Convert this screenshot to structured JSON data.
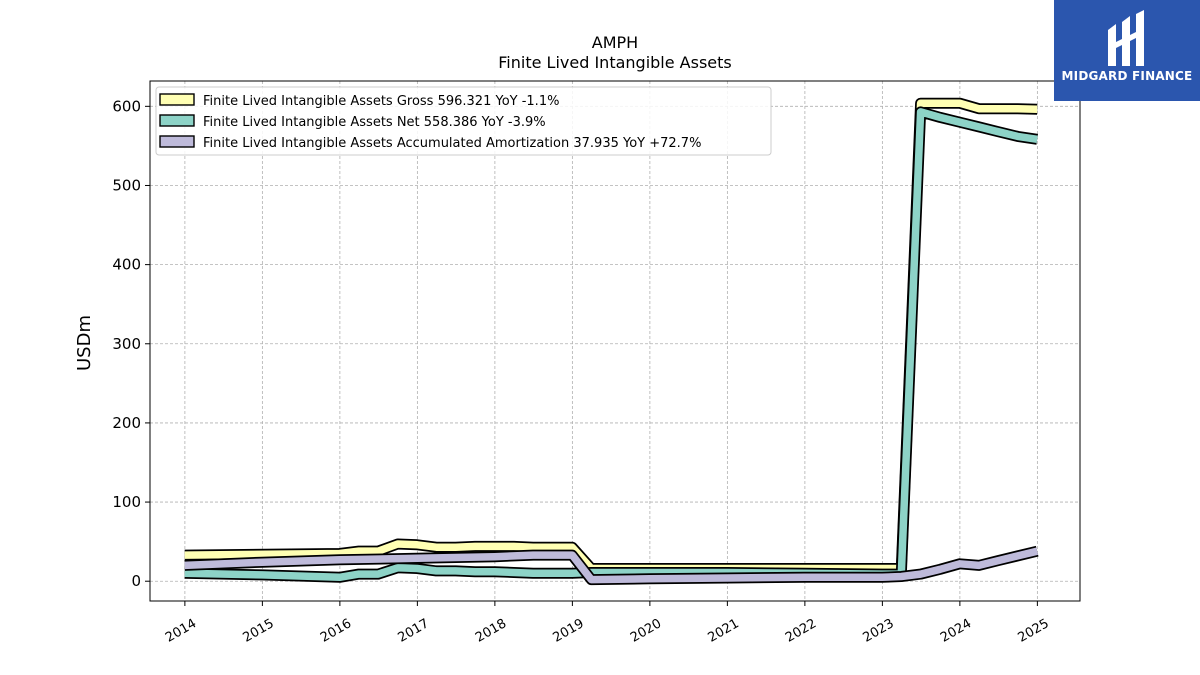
{
  "chart_data": {
    "type": "line",
    "title": "AMPH",
    "subtitle": "Finite Lived Intangible Assets",
    "ylabel": "USDm",
    "xlabel": "",
    "ylim": [
      -25,
      632
    ],
    "xlim": [
      2013.55,
      2025.55
    ],
    "grid": true,
    "legend_position": "top-left",
    "y_ticks": [
      0,
      100,
      200,
      300,
      400,
      500,
      600
    ],
    "x_ticks": [
      "2014",
      "2015",
      "2016",
      "2017",
      "2018",
      "2019",
      "2020",
      "2021",
      "2022",
      "2023",
      "2024",
      "2025"
    ],
    "series": [
      {
        "name": "Finite Lived Intangible Assets Gross",
        "legend_label": "Finite Lived Intangible Assets Gross  596.321 YoY -1.1%",
        "color": "#ffffb3",
        "points": [
          [
            "2013-12-31",
            33
          ],
          [
            "2015-12-31",
            35
          ],
          [
            "2016-03-31",
            38
          ],
          [
            "2016-06-30",
            38
          ],
          [
            "2016-09-30",
            47
          ],
          [
            "2016-12-31",
            46
          ],
          [
            "2017-03-31",
            43
          ],
          [
            "2017-06-30",
            43
          ],
          [
            "2017-09-30",
            44
          ],
          [
            "2017-12-31",
            44
          ],
          [
            "2018-03-31",
            44
          ],
          [
            "2018-06-30",
            43
          ],
          [
            "2018-09-30",
            43
          ],
          [
            "2018-12-31",
            43
          ],
          [
            "2019-03-31",
            16
          ],
          [
            "2019-06-30",
            16
          ],
          [
            "2019-09-30",
            16
          ],
          [
            "2019-12-31",
            16
          ],
          [
            "2020-12-31",
            16
          ],
          [
            "2021-12-31",
            16
          ],
          [
            "2022-12-31",
            16
          ],
          [
            "2023-03-31",
            16
          ],
          [
            "2023-06-30",
            604
          ],
          [
            "2023-09-30",
            604
          ],
          [
            "2023-12-31",
            604
          ],
          [
            "2024-03-31",
            597
          ],
          [
            "2024-06-30",
            597
          ],
          [
            "2024-09-30",
            597
          ],
          [
            "2024-12-31",
            596.321
          ]
        ]
      },
      {
        "name": "Finite Lived Intangible Assets Net",
        "legend_label": "Finite Lived Intangible Assets Net  558.386 YoY -3.9%",
        "color": "#8dd3c7",
        "points": [
          [
            "2013-12-31",
            10
          ],
          [
            "2014-12-31",
            8
          ],
          [
            "2015-12-31",
            5
          ],
          [
            "2016-03-31",
            9
          ],
          [
            "2016-06-30",
            9
          ],
          [
            "2016-09-30",
            17
          ],
          [
            "2016-12-31",
            16
          ],
          [
            "2017-03-31",
            13
          ],
          [
            "2017-06-30",
            13
          ],
          [
            "2017-09-30",
            12
          ],
          [
            "2017-12-31",
            12
          ],
          [
            "2018-03-31",
            11
          ],
          [
            "2018-06-30",
            10
          ],
          [
            "2018-09-30",
            10
          ],
          [
            "2018-12-31",
            10
          ],
          [
            "2019-03-31",
            11
          ],
          [
            "2019-06-30",
            11
          ],
          [
            "2019-12-31",
            11
          ],
          [
            "2020-12-31",
            11
          ],
          [
            "2021-12-31",
            10
          ],
          [
            "2022-12-31",
            9
          ],
          [
            "2023-03-31",
            9
          ],
          [
            "2023-06-30",
            593
          ],
          [
            "2023-09-30",
            586
          ],
          [
            "2023-12-31",
            580
          ],
          [
            "2024-03-31",
            574
          ],
          [
            "2024-06-30",
            568
          ],
          [
            "2024-09-30",
            562
          ],
          [
            "2024-12-31",
            558.386
          ]
        ]
      },
      {
        "name": "Finite Lived Intangible Assets Accumulated Amortization",
        "legend_label": "Finite Lived Intangible Assets Accumulated Amortization  37.935 YoY +72.7%",
        "color": "#bebada",
        "points": [
          [
            "2013-12-31",
            20
          ],
          [
            "2014-12-31",
            24
          ],
          [
            "2015-12-31",
            27
          ],
          [
            "2016-12-31",
            29
          ],
          [
            "2017-12-31",
            31
          ],
          [
            "2018-06-30",
            33
          ],
          [
            "2018-12-31",
            33
          ],
          [
            "2019-03-31",
            2
          ],
          [
            "2019-12-31",
            3
          ],
          [
            "2020-12-31",
            4
          ],
          [
            "2021-12-31",
            5
          ],
          [
            "2022-12-31",
            5
          ],
          [
            "2023-03-31",
            6
          ],
          [
            "2023-06-30",
            9
          ],
          [
            "2023-09-30",
            15
          ],
          [
            "2023-12-31",
            22
          ],
          [
            "2024-03-31",
            20
          ],
          [
            "2024-06-30",
            26
          ],
          [
            "2024-09-30",
            32
          ],
          [
            "2024-12-31",
            37.935
          ]
        ]
      }
    ]
  },
  "logo": {
    "text": "MIDGARD FINANCE",
    "background": "#2b56ae"
  }
}
